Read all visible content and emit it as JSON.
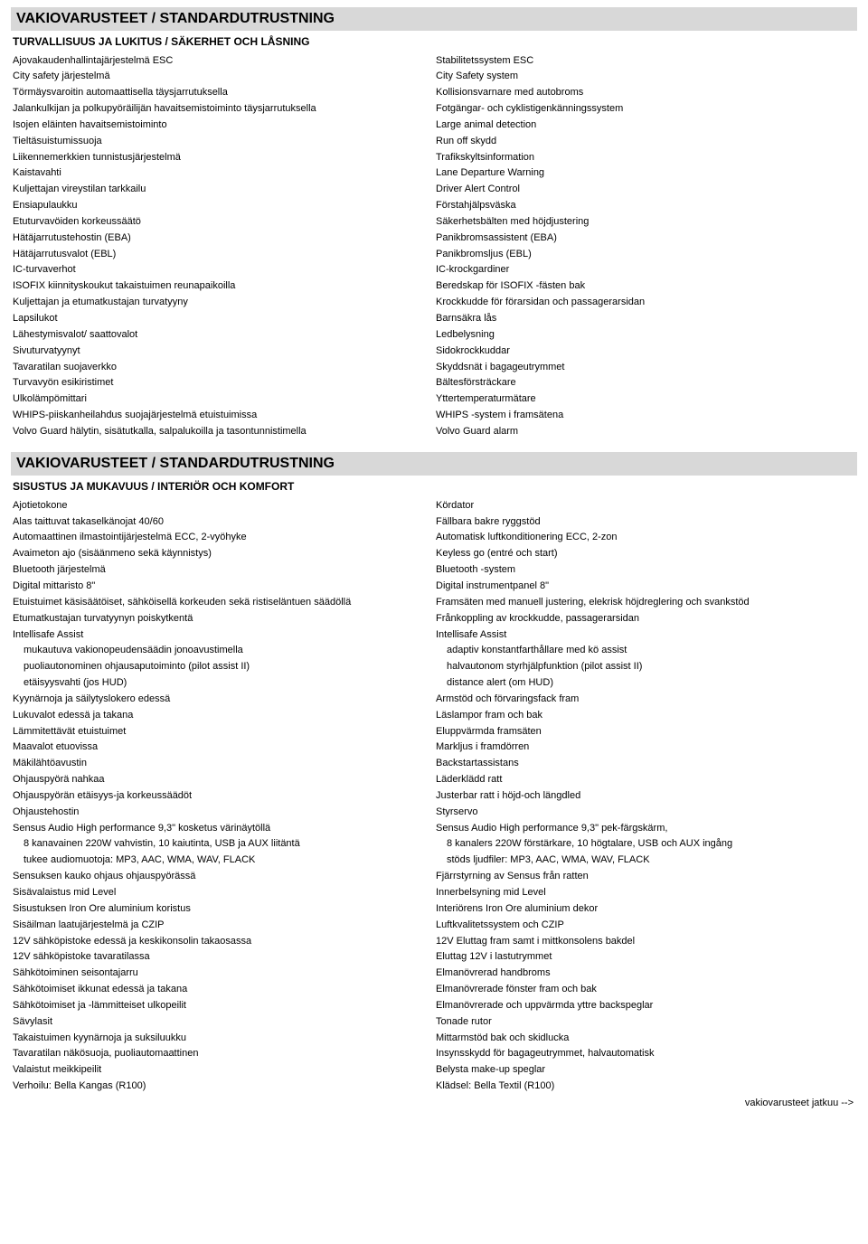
{
  "section1": {
    "title": "VAKIOVARUSTEET / STANDARDUTRUSTNING",
    "subtitle": "TURVALLISUUS JA LUKITUS / SÄKERHET OCH LÅSNING",
    "rows": [
      {
        "fi": "Ajovakaudenhallintajärjestelmä ESC",
        "sv": "Stabilitetssystem ESC"
      },
      {
        "fi": "City safety järjestelmä",
        "sv": "City Safety system"
      },
      {
        "fi": "Törmäysvaroitin automaattisella täysjarrutuksella",
        "sv": "Kollisionsvarnare med autobroms"
      },
      {
        "fi": "Jalankulkijan ja polkupyöräilijän havaitsemistoiminto täysjarrutuksella",
        "sv": "Fotgängar- och cyklistigenkänningssystem"
      },
      {
        "fi": "Isojen eläinten havaitsemistoiminto",
        "sv": "Large animal detection"
      },
      {
        "fi": "Tieltäsuistumissuoja",
        "sv": "Run off skydd"
      },
      {
        "fi": "Liikennemerkkien tunnistusjärjestelmä",
        "sv": "Trafikskyltsinformation"
      },
      {
        "fi": "Kaistavahti",
        "sv": "Lane Departure Warning"
      },
      {
        "fi": "Kuljettajan vireystilan tarkkailu",
        "sv": "Driver Alert Control"
      },
      {
        "fi": "Ensiapulaukku",
        "sv": "Förstahjälpsväska"
      },
      {
        "fi": "Etuturvavöiden korkeussäätö",
        "sv": "Säkerhetsbälten med höjdjustering"
      },
      {
        "fi": "Hätäjarrutustehostin (EBA)",
        "sv": "Panikbromsassistent (EBA)"
      },
      {
        "fi": "Hätäjarrutusvalot (EBL)",
        "sv": "Panikbromsljus (EBL)"
      },
      {
        "fi": "IC-turvaverhot",
        "sv": "IC-krockgardiner"
      },
      {
        "fi": "ISOFIX kiinnityskoukut takaistuimen reunapaikoilla",
        "sv": "Beredskap för ISOFIX -fästen bak"
      },
      {
        "fi": "Kuljettajan ja etumatkustajan turvatyyny",
        "sv": "Krockkudde för förarsidan och passagerarsidan"
      },
      {
        "fi": "Lapsilukot",
        "sv": "Barnsäkra lås"
      },
      {
        "fi": "Lähestymisvalot/ saattovalot",
        "sv": "Ledbelysning"
      },
      {
        "fi": "Sivuturvatyynyt",
        "sv": "Sidokrockkuddar"
      },
      {
        "fi": "Tavaratilan suojaverkko",
        "sv": "Skyddsnät i bagageutrymmet"
      },
      {
        "fi": "Turvavyön esikiristimet",
        "sv": "Bältesförsträckare"
      },
      {
        "fi": "Ulkolämpömittari",
        "sv": "Yttertemperaturmätare"
      },
      {
        "fi": "WHIPS-piiskanheilahdus suojajärjestelmä etuistuimissa",
        "sv": "WHIPS -system i framsätena"
      },
      {
        "fi": "Volvo Guard hälytin, sisätutkalla, salpalukoilla ja tasontunnistimella",
        "sv": "Volvo Guard alarm"
      }
    ]
  },
  "section2": {
    "title": "VAKIOVARUSTEET / STANDARDUTRUSTNING",
    "subtitle": "SISUSTUS JA MUKAVUUS / INTERIÖR OCH KOMFORT",
    "rows": [
      {
        "fi": "Ajotietokone",
        "sv": "Kördator"
      },
      {
        "fi": "Alas taittuvat takaselkänojat 40/60",
        "sv": "Fällbara bakre ryggstöd"
      },
      {
        "fi": "Automaattinen ilmastointijärjestelmä ECC, 2-vyöhyke",
        "sv": "Automatisk luftkonditionering ECC, 2-zon"
      },
      {
        "fi": "Avaimeton ajo (sisäänmeno sekä käynnistys)",
        "sv": "Keyless go (entré och start)"
      },
      {
        "fi": "Bluetooth järjestelmä",
        "sv": "Bluetooth -system"
      },
      {
        "fi": "Digital mittaristo 8\"",
        "sv": "Digital instrumentpanel 8\""
      },
      {
        "fi": "Etuistuimet käsisäätöiset, sähköisellä korkeuden sekä ristiseläntuen säädöllä",
        "sv": "Framsäten med manuell justering, elekrisk höjdreglering och svankstöd"
      },
      {
        "fi": "Etumatkustajan turvatyynyn poiskytkentä",
        "sv": "Frånkoppling av krockkudde, passagerarsidan"
      },
      {
        "fi": "Intellisafe Assist",
        "sv": "Intellisafe Assist"
      },
      {
        "fi": "mukautuva vakionopeudensäädin jonoavustimella",
        "sv": "adaptiv konstantfarthållare med kö assist",
        "indent": true
      },
      {
        "fi": "puoliautonominen ohjausaputoiminto (pilot assist II)",
        "sv": "halvautonom styrhjälpfunktion (pilot assist II)",
        "indent": true
      },
      {
        "fi": "etäisyysvahti (jos HUD)",
        "sv": "distance alert (om HUD)",
        "indent": true
      },
      {
        "fi": "Kyynärnoja ja säilytyslokero edessä",
        "sv": "Armstöd och förvaringsfack fram"
      },
      {
        "fi": "Lukuvalot edessä ja takana",
        "sv": "Läslampor fram och bak"
      },
      {
        "fi": "Lämmitettävät etuistuimet",
        "sv": "Eluppvärmda framsäten"
      },
      {
        "fi": "Maavalot etuovissa",
        "sv": "Markljus i framdörren"
      },
      {
        "fi": "Mäkilähtöavustin",
        "sv": "Backstartassistans"
      },
      {
        "fi": "Ohjauspyörä nahkaa",
        "sv": "Läderklädd ratt"
      },
      {
        "fi": "Ohjauspyörän etäisyys-ja korkeussäädöt",
        "sv": "Justerbar ratt i höjd-och längdled"
      },
      {
        "fi": "Ohjaustehostin",
        "sv": "Styrservo"
      },
      {
        "fi": "Sensus Audio High performance 9,3\" kosketus värinäytöllä",
        "sv": "Sensus Audio High performance 9,3\" pek-färgskärm,"
      },
      {
        "fi": "8 kanavainen 220W vahvistin, 10 kaiutinta, USB ja AUX liitäntä",
        "sv": "8 kanalers 220W förstärkare, 10 högtalare, USB och AUX ingång",
        "indent": true
      },
      {
        "fi": "tukee audiomuotoja: MP3, AAC, WMA, WAV, FLACK",
        "sv": "stöds ljudfiler: MP3, AAC, WMA, WAV, FLACK",
        "indent": true
      },
      {
        "fi": "Sensuksen kauko ohjaus ohjauspyörässä",
        "sv": "Fjärrstyrning av Sensus från ratten"
      },
      {
        "fi": "Sisävalaistus mid Level",
        "sv": "Innerbelsyning mid Level"
      },
      {
        "fi": "Sisustuksen Iron Ore aluminium koristus",
        "sv": "Interiörens Iron Ore aluminium dekor"
      },
      {
        "fi": "Sisäilman laatujärjestelmä ja CZIP",
        "sv": "Luftkvalitetssystem och CZIP"
      },
      {
        "fi": "12V sähköpistoke edessä ja keskikonsolin takaosassa",
        "sv": "12V Eluttag fram samt i mittkonsolens bakdel"
      },
      {
        "fi": "12V sähköpistoke tavaratilassa",
        "sv": "Eluttag 12V i lastutrymmet"
      },
      {
        "fi": "Sähkötoiminen seisontajarru",
        "sv": "Elmanövrerad handbroms"
      },
      {
        "fi": "Sähkötoimiset ikkunat edessä ja takana",
        "sv": "Elmanövrerade fönster fram och bak"
      },
      {
        "fi": "Sähkötoimiset ja -lämmitteiset ulkopeilit",
        "sv": "Elmanövrerade och uppvärmda yttre backspeglar"
      },
      {
        "fi": "Sävylasit",
        "sv": "Tonade rutor"
      },
      {
        "fi": "Takaistuimen kyynärnoja ja suksiluukku",
        "sv": "Mittarmstöd bak och skidlucka"
      },
      {
        "fi": "Tavaratilan näkösuoja, puoliautomaattinen",
        "sv": "Insynsskydd för bagageutrymmet, halvautomatisk"
      },
      {
        "fi": "Valaistut meikkipeilit",
        "sv": "Belysta make-up speglar"
      },
      {
        "fi": "Verhoilu: Bella Kangas (R100)",
        "sv": "Klädsel: Bella Textil (R100)"
      }
    ]
  },
  "continueText": "vakiovarusteet jatkuu -->"
}
